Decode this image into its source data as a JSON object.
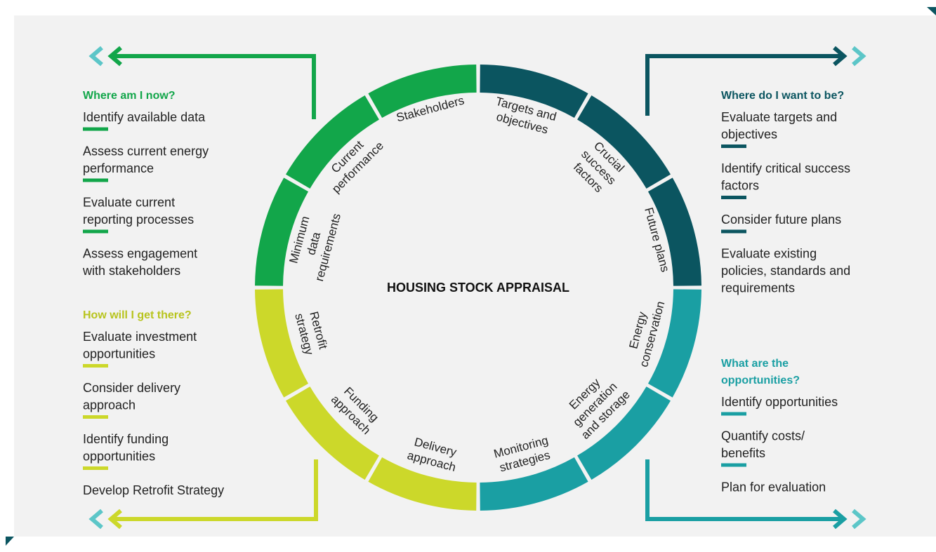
{
  "title": "HOUSING STOCK APPRAISAL",
  "segments": [
    {
      "lines": [
        "Targets and",
        "objectives"
      ]
    },
    {
      "lines": [
        "Crucial",
        "success",
        "factors"
      ]
    },
    {
      "lines": [
        "Future plans"
      ]
    },
    {
      "lines": [
        "Energy",
        "conservation"
      ]
    },
    {
      "lines": [
        "Energy",
        "generation",
        "and storage"
      ]
    },
    {
      "lines": [
        "Monitoring",
        "strategies"
      ]
    },
    {
      "lines": [
        "Delivery",
        "approach"
      ]
    },
    {
      "lines": [
        "Funding",
        "approach"
      ]
    },
    {
      "lines": [
        "Retrofit",
        "strategy"
      ]
    },
    {
      "lines": [
        "Minimum",
        "data",
        "requirements"
      ]
    },
    {
      "lines": [
        "Current",
        "performance"
      ]
    },
    {
      "lines": [
        "Stakeholders"
      ]
    }
  ],
  "panels": [
    {
      "heading": [
        "Where am I now?"
      ],
      "items": [
        [
          "Identify available data"
        ],
        [
          "Assess current energy",
          "performance"
        ],
        [
          "Evaluate current",
          "reporting processes"
        ],
        [
          "Assess engagement",
          "with stakeholders"
        ]
      ]
    },
    {
      "heading": [
        "How will I get there?"
      ],
      "items": [
        [
          "Evaluate investment",
          "opportunities"
        ],
        [
          "Consider delivery",
          "approach"
        ],
        [
          "Identify funding",
          "opportunities"
        ],
        [
          "Develop Retrofit Strategy"
        ]
      ]
    },
    {
      "heading": [
        "Where do I want to be?"
      ],
      "items": [
        [
          "Evaluate targets and",
          "objectives"
        ],
        [
          "Identify critical success",
          "factors"
        ],
        [
          "Consider future plans"
        ],
        [
          "Evaluate existing",
          "policies, standards and",
          "requirements"
        ]
      ]
    },
    {
      "heading": [
        "What are the",
        "opportunities?"
      ],
      "items": [
        [
          "Identify opportunities"
        ],
        [
          "Quantify costs/",
          "benefits"
        ],
        [
          "Plan for evaluation"
        ]
      ]
    }
  ]
}
